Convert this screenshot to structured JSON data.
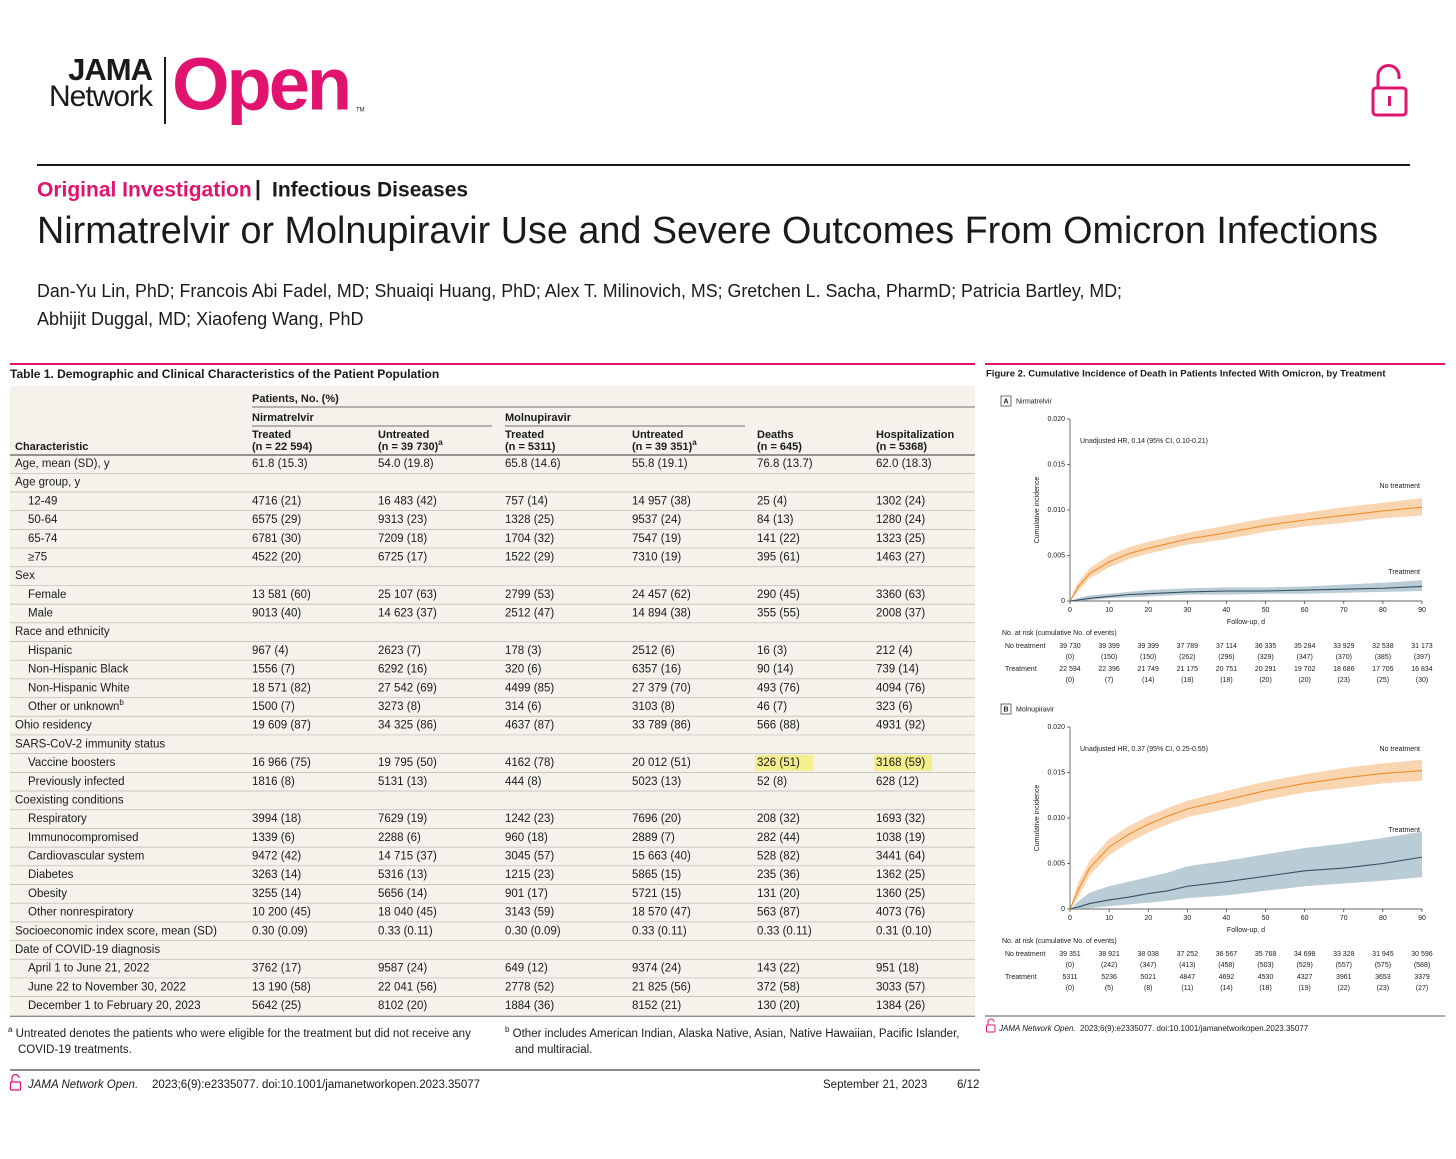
{
  "header": {
    "logo_line1": "JAMA",
    "logo_line2": "Network",
    "logo_open": "Open",
    "logo_tm": "TM"
  },
  "article": {
    "category": "Original Investigation",
    "separator": "|",
    "subject": "Infectious Diseases",
    "title": "Nirmatrelvir or Molnupiravir Use and Severe Outcomes From Omicron Infections",
    "authors": [
      "Dan-Yu Lin, PhD; Francois Abi Fadel, MD; Shuaiqi Huang, PhD; Alex T. Milinovich, MS; Gretchen L. Sacha, PharmD; Patricia Bartley, MD;",
      "Abhijit Duggal, MD; Xiaofeng Wang, PhD"
    ]
  },
  "table": {
    "caption": "Table 1. Demographic and Clinical Characteristics of the Patient Population",
    "group_header": "Patients, No. (%)",
    "groups": [
      "Nirmatrelvir",
      "Molnupiravir"
    ],
    "columns": [
      {
        "label": "Characteristic"
      },
      {
        "label": "Treated",
        "n": "(n = 22 594)"
      },
      {
        "label": "Untreated",
        "n": "(n = 39 730)",
        "note": "a"
      },
      {
        "label": "Treated",
        "n": "(n = 5311)"
      },
      {
        "label": "Untreated",
        "n": "(n = 39 351)",
        "note": "a"
      },
      {
        "label": "Deaths",
        "n": "(n = 645)"
      },
      {
        "label": "Hospitalization",
        "n": "(n = 5368)"
      }
    ],
    "rows": [
      {
        "label": "Age, mean (SD), y",
        "cells": [
          "61.8 (15.3)",
          "54.0 (19.8)",
          "65.8 (14.6)",
          "55.8 (19.1)",
          "76.8 (13.7)",
          "62.0 (18.3)"
        ]
      },
      {
        "label": "Age group, y",
        "rows": [
          {
            "label": "12-49",
            "cells": [
              "4716 (21)",
              "16 483 (42)",
              "757 (14)",
              "14 957 (38)",
              "25 (4)",
              "1302 (24)"
            ]
          },
          {
            "label": "50-64",
            "cells": [
              "6575 (29)",
              "9313 (23)",
              "1328 (25)",
              "9537 (24)",
              "84 (13)",
              "1280 (24)"
            ]
          },
          {
            "label": "65-74",
            "cells": [
              "6781 (30)",
              "7209 (18)",
              "1704 (32)",
              "7547 (19)",
              "141 (22)",
              "1323 (25)"
            ]
          },
          {
            "label": "≥75",
            "cells": [
              "4522 (20)",
              "6725 (17)",
              "1522 (29)",
              "7310 (19)",
              "395 (61)",
              "1463 (27)"
            ]
          }
        ]
      },
      {
        "label": "Sex",
        "rows": [
          {
            "label": "Female",
            "cells": [
              "13 581 (60)",
              "25 107 (63)",
              "2799 (53)",
              "24 457 (62)",
              "290 (45)",
              "3360 (63)"
            ]
          },
          {
            "label": "Male",
            "cells": [
              "9013 (40)",
              "14 623 (37)",
              "2512 (47)",
              "14 894 (38)",
              "355 (55)",
              "2008 (37)"
            ]
          }
        ]
      },
      {
        "label": "Race and ethnicity",
        "rows": [
          {
            "label": "Hispanic",
            "cells": [
              "967 (4)",
              "2623 (7)",
              "178 (3)",
              "2512 (6)",
              "16 (3)",
              "212 (4)"
            ]
          },
          {
            "label": "Non-Hispanic Black",
            "cells": [
              "1556 (7)",
              "6292 (16)",
              "320 (6)",
              "6357 (16)",
              "90 (14)",
              "739 (14)"
            ]
          },
          {
            "label": "Non-Hispanic White",
            "cells": [
              "18 571 (82)",
              "27 542 (69)",
              "4499 (85)",
              "27 379 (70)",
              "493 (76)",
              "4094 (76)"
            ]
          },
          {
            "label": "Other or unknown",
            "note": "b",
            "cells": [
              "1500 (7)",
              "3273 (8)",
              "314 (6)",
              "3103 (8)",
              "46 (7)",
              "323 (6)"
            ]
          }
        ]
      },
      {
        "label": "Ohio residency",
        "cells": [
          "19 609 (87)",
          "34 325 (86)",
          "4637 (87)",
          "33 789 (86)",
          "566 (88)",
          "4931 (92)"
        ]
      },
      {
        "label": "SARS-CoV-2 immunity status",
        "rows": [
          {
            "label": "Vaccine boosters",
            "cells": [
              "16 966 (75)",
              "19 795 (50)",
              "4162 (78)",
              "20 012 (51)",
              "326 (51)",
              "3168 (59)"
            ]
          },
          {
            "label": "Previously infected",
            "cells": [
              "1816 (8)",
              "5131 (13)",
              "444 (8)",
              "5023 (13)",
              "52 (8)",
              "628 (12)"
            ]
          }
        ]
      },
      {
        "label": "Coexisting conditions",
        "rows": [
          {
            "label": "Respiratory",
            "cells": [
              "3994 (18)",
              "7629 (19)",
              "1242 (23)",
              "7696 (20)",
              "208 (32)",
              "1693 (32)"
            ]
          },
          {
            "label": "Immunocompromised",
            "cells": [
              "1339 (6)",
              "2288 (6)",
              "960 (18)",
              "2889 (7)",
              "282 (44)",
              "1038 (19)"
            ]
          },
          {
            "label": "Cardiovascular system",
            "cells": [
              "9472 (42)",
              "14 715 (37)",
              "3045 (57)",
              "15 663 (40)",
              "528 (82)",
              "3441 (64)"
            ]
          },
          {
            "label": "Diabetes",
            "cells": [
              "3263 (14)",
              "5316 (13)",
              "1215 (23)",
              "5865 (15)",
              "235 (36)",
              "1362 (25)"
            ]
          },
          {
            "label": "Obesity",
            "cells": [
              "3255 (14)",
              "5656 (14)",
              "901 (17)",
              "5721 (15)",
              "131 (20)",
              "1360 (25)"
            ]
          },
          {
            "label": "Other nonrespiratory",
            "cells": [
              "10 200 (45)",
              "18 040 (45)",
              "3143 (59)",
              "18 570 (47)",
              "563 (87)",
              "4073 (76)"
            ]
          }
        ]
      },
      {
        "label": "Socioeconomic index score, mean (SD)",
        "cells": [
          "0.30 (0.09)",
          "0.33 (0.11)",
          "0.30 (0.09)",
          "0.33 (0.11)",
          "0.33 (0.11)",
          "0.31 (0.10)"
        ]
      },
      {
        "label": "Date of COVID-19 diagnosis",
        "rows": [
          {
            "label": "April 1 to June 21, 2022",
            "cells": [
              "3762 (17)",
              "9587 (24)",
              "649 (12)",
              "9374 (24)",
              "143 (22)",
              "951 (18)"
            ]
          },
          {
            "label": "June 22 to November 30, 2022",
            "cells": [
              "13 190 (58)",
              "22 041 (56)",
              "2778 (52)",
              "21 825 (56)",
              "372 (58)",
              "3033 (57)"
            ]
          },
          {
            "label": "December 1 to February 20, 2023",
            "cells": [
              "5642 (25)",
              "8102 (20)",
              "1884 (36)",
              "8152 (21)",
              "130 (20)",
              "1384 (26)"
            ]
          }
        ]
      }
    ],
    "footnotes": [
      {
        "mark": "a",
        "text": "Untreated denotes the patients who were eligible for the treatment but did not receive any COVID-19 treatments."
      },
      {
        "mark": "b",
        "text": "Other includes American Indian, Alaska Native, Asian, Native Hawaiian, Pacific Islander, and multiracial."
      }
    ]
  },
  "figure": {
    "caption": "Figure 2. Cumulative Incidence of Death in Patients Infected With Omicron, by Treatment",
    "citation_journal": "JAMA Network Open.",
    "citation": "2023;6(9):e2335077. doi:10.1001/jamanetworkopen.2023.35077"
  },
  "chart_data": [
    {
      "type": "line",
      "panel": "A",
      "title": "Nirmatrelvir",
      "annotation": "Unadjusted HR, 0.14 (95% CI, 0.10-0.21)",
      "x_label": "Follow-up, d",
      "y_label": "Cumulative incidence",
      "x": [
        0,
        2,
        5,
        10,
        15,
        20,
        25,
        30,
        40,
        50,
        60,
        70,
        80,
        90
      ],
      "xlim": [
        0,
        90
      ],
      "xticks": [
        0,
        10,
        20,
        30,
        40,
        50,
        60,
        70,
        80,
        90
      ],
      "ylim": [
        0,
        0.02
      ],
      "yticks": [
        0,
        0.005,
        {
          "value": 0.01,
          "label": "0.010"
        },
        0.015,
        {
          "value": 0.02,
          "label": "0.020"
        }
      ],
      "series": [
        {
          "name": "No treatment",
          "color": "#f08c2a",
          "band_color": "#f8cc9e",
          "values": [
            0,
            0.0015,
            0.003,
            0.0043,
            0.0052,
            0.0058,
            0.0063,
            0.0068,
            0.0075,
            0.0083,
            0.0089,
            0.0094,
            0.0099,
            0.0103
          ],
          "lower": [
            0,
            0.001,
            0.0025,
            0.0037,
            0.0046,
            0.0052,
            0.0057,
            0.0062,
            0.0068,
            0.0076,
            0.0082,
            0.0086,
            0.0091,
            0.0094
          ],
          "upper": [
            0,
            0.002,
            0.0036,
            0.005,
            0.0059,
            0.0065,
            0.007,
            0.0075,
            0.0083,
            0.0091,
            0.0097,
            0.0103,
            0.0108,
            0.0113
          ]
        },
        {
          "name": "Treatment",
          "color": "#34505f",
          "band_color": "#a9bfcc",
          "values": [
            0,
            0.0001,
            0.0003,
            0.0005,
            0.0007,
            0.0008,
            0.0009,
            0.001,
            0.0011,
            0.0011,
            0.0012,
            0.0013,
            0.0014,
            0.0016
          ],
          "lower": [
            0,
            0,
            0.0001,
            0.0003,
            0.0004,
            0.0005,
            0.0006,
            0.0007,
            0.0007,
            0.0008,
            0.0008,
            0.0009,
            0.001,
            0.0011
          ],
          "upper": [
            0,
            0.0003,
            0.0006,
            0.0008,
            0.001,
            0.0012,
            0.0013,
            0.0014,
            0.0015,
            0.0015,
            0.0016,
            0.0018,
            0.002,
            0.0023
          ]
        }
      ],
      "at_risk": {
        "title": "No. at risk (cumulative No. of events)",
        "rows": [
          {
            "name": "No treatment",
            "counts": [
              "39 730",
              "39 399",
              "39 399",
              "37 789",
              "37 114",
              "36 335",
              "35 284",
              "33 929",
              "32 538",
              "31 173"
            ],
            "events": [
              "(0)",
              "(150)",
              "(150)",
              "(262)",
              "(296)",
              "(329)",
              "(347)",
              "(370)",
              "(385)",
              "(397)"
            ]
          },
          {
            "name": "Treatment",
            "counts": [
              "22 594",
              "22 396",
              "21 749",
              "21 175",
              "20 751",
              "20 291",
              "19 702",
              "18 686",
              "17 705",
              "16 834"
            ],
            "events": [
              "(0)",
              "(7)",
              "(14)",
              "(18)",
              "(18)",
              "(20)",
              "(20)",
              "(23)",
              "(25)",
              "(30)"
            ]
          }
        ]
      }
    },
    {
      "type": "line",
      "panel": "B",
      "title": "Molnupiravir",
      "annotation": "Unadjusted HR, 0.37 (95% CI, 0.25-0.55)",
      "x_label": "Follow-up, d",
      "y_label": "Cumulative incidence",
      "x": [
        0,
        2,
        5,
        10,
        15,
        20,
        25,
        30,
        40,
        50,
        60,
        70,
        80,
        90
      ],
      "xlim": [
        0,
        90
      ],
      "xticks": [
        0,
        10,
        20,
        30,
        40,
        50,
        60,
        70,
        80,
        90
      ],
      "ylim": [
        0,
        0.02
      ],
      "yticks": [
        0,
        0.005,
        {
          "value": 0.01,
          "label": "0.010"
        },
        0.015,
        {
          "value": 0.02,
          "label": "0.020"
        }
      ],
      "series": [
        {
          "name": "No treatment",
          "color": "#f08c2a",
          "band_color": "#f8cc9e",
          "values": [
            0,
            0.002,
            0.0045,
            0.0068,
            0.0082,
            0.0093,
            0.0102,
            0.011,
            0.012,
            0.013,
            0.0138,
            0.0144,
            0.0149,
            0.0152
          ],
          "lower": [
            0,
            0.0012,
            0.0037,
            0.0059,
            0.0073,
            0.0084,
            0.0093,
            0.0101,
            0.011,
            0.012,
            0.0128,
            0.0133,
            0.0138,
            0.0141
          ],
          "upper": [
            0,
            0.0028,
            0.0053,
            0.0077,
            0.0091,
            0.0102,
            0.0111,
            0.0119,
            0.013,
            0.014,
            0.0148,
            0.0155,
            0.016,
            0.0164
          ]
        },
        {
          "name": "Treatment",
          "color": "#34505f",
          "band_color": "#a9bfcc",
          "values": [
            0,
            0.0002,
            0.0006,
            0.001,
            0.0013,
            0.0017,
            0.002,
            0.0025,
            0.003,
            0.0036,
            0.0042,
            0.0045,
            0.005,
            0.0057
          ],
          "lower": [
            0,
            0,
            0.0001,
            0.0003,
            0.0005,
            0.0007,
            0.0009,
            0.0012,
            0.0015,
            0.002,
            0.0025,
            0.0028,
            0.0031,
            0.0035
          ],
          "upper": [
            0,
            0.0008,
            0.0018,
            0.0025,
            0.003,
            0.0035,
            0.004,
            0.0047,
            0.0053,
            0.006,
            0.0067,
            0.0072,
            0.0078,
            0.0085
          ]
        }
      ],
      "at_risk": {
        "title": "No. at risk (cumulative No. of events)",
        "rows": [
          {
            "name": "No treatment",
            "counts": [
              "39 351",
              "38 921",
              "38 038",
              "37 252",
              "36 567",
              "35 768",
              "34 698",
              "33 328",
              "31 945",
              "30 596"
            ],
            "events": [
              "(0)",
              "(242)",
              "(347)",
              "(413)",
              "(458)",
              "(503)",
              "(529)",
              "(557)",
              "(575)",
              "(588)"
            ]
          },
          {
            "name": "Treatment",
            "counts": [
              "5311",
              "5236",
              "5021",
              "4847",
              "4692",
              "4530",
              "4327",
              "3961",
              "3653",
              "3379"
            ],
            "events": [
              "(0)",
              "(5)",
              "(8)",
              "(11)",
              "(14)",
              "(18)",
              "(19)",
              "(22)",
              "(23)",
              "(27)"
            ]
          }
        ]
      }
    }
  ],
  "footer": {
    "journal": "JAMA Network Open.",
    "citation": "2023;6(9):e2335077. doi:10.1001/jamanetworkopen.2023.35077",
    "date": "September 21, 2023",
    "page": "6/12"
  }
}
